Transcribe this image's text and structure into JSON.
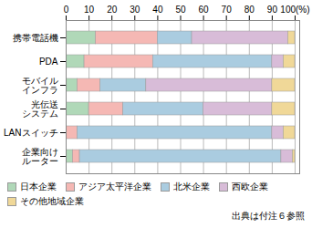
{
  "chart_data": {
    "type": "bar",
    "orientation": "horizontal",
    "stacked": true,
    "categories": [
      "携帯電話機",
      "PDA",
      "モバイル\nインフラ",
      "光伝送\nシステム",
      "LANスイッチ",
      "企業向け\nルーター"
    ],
    "series": [
      {
        "name": "日本企業",
        "color": "#b0d8b8",
        "values": [
          13,
          8,
          5,
          10,
          0,
          3
        ]
      },
      {
        "name": "アジア太平洋企業",
        "color": "#f5b8b4",
        "values": [
          27,
          30,
          10,
          15,
          5,
          3
        ]
      },
      {
        "name": "北米企業",
        "color": "#aacce0",
        "values": [
          15,
          52,
          20,
          35,
          85,
          88
        ]
      },
      {
        "name": "西欧企業",
        "color": "#d8bcd8",
        "values": [
          42,
          5,
          55,
          30,
          5,
          5
        ]
      },
      {
        "name": "その他地域企業",
        "color": "#f0d898",
        "values": [
          3,
          5,
          10,
          10,
          5,
          1
        ]
      }
    ],
    "xlim": [
      0,
      102
    ],
    "xticks": [
      0,
      10,
      20,
      30,
      40,
      50,
      60,
      70,
      80,
      90,
      {
        "value": 100,
        "label": "100(%)"
      }
    ],
    "grid": true,
    "legend": "bottom",
    "annotations": [
      "出典は付注６参照"
    ]
  }
}
